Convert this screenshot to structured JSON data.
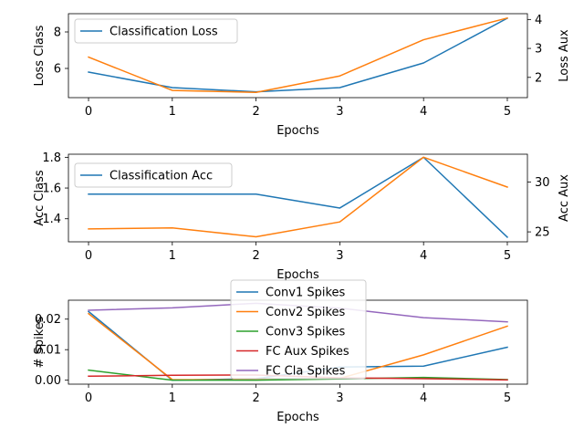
{
  "chart_data": [
    {
      "type": "line",
      "xlabel": "Epochs",
      "ylabel_left": "Loss Class",
      "ylabel_right": "Loss Aux",
      "x": [
        0,
        1,
        2,
        3,
        4,
        5
      ],
      "xticks": [
        "0",
        "1",
        "2",
        "3",
        "4",
        "5"
      ],
      "left_ylim": [
        4.4,
        9.0
      ],
      "left_yticks": [
        "6",
        "8"
      ],
      "right_ylim": [
        1.3,
        4.2
      ],
      "right_yticks": [
        "2",
        "3",
        "4"
      ],
      "legend": {
        "position": "top-left",
        "entries": [
          "Classification Loss"
        ]
      },
      "series": [
        {
          "name": "Classification Loss",
          "axis": "left",
          "color": "#1f77b4",
          "values": [
            5.8,
            4.95,
            4.72,
            4.95,
            6.3,
            8.75
          ]
        },
        {
          "axis": "right",
          "color": "#ff7f0e",
          "values": [
            2.7,
            1.55,
            1.48,
            2.05,
            3.3,
            4.05
          ]
        }
      ]
    },
    {
      "type": "line",
      "xlabel": "Epochs",
      "ylabel_left": "Acc Class",
      "ylabel_right": "Acc Aux",
      "x": [
        0,
        1,
        2,
        3,
        4,
        5
      ],
      "xticks": [
        "0",
        "1",
        "2",
        "3",
        "4",
        "5"
      ],
      "left_ylim": [
        1.25,
        1.82
      ],
      "left_yticks": [
        "1.4",
        "1.6",
        "1.8"
      ],
      "right_ylim": [
        24.0,
        32.8
      ],
      "right_yticks": [
        "25",
        "30"
      ],
      "legend": {
        "position": "top-left",
        "entries": [
          "Classification Acc"
        ]
      },
      "series": [
        {
          "name": "Classification Acc",
          "axis": "left",
          "color": "#1f77b4",
          "values": [
            1.56,
            1.56,
            1.56,
            1.47,
            1.8,
            1.28
          ]
        },
        {
          "axis": "right",
          "color": "#ff7f0e",
          "values": [
            25.3,
            25.4,
            24.5,
            26.0,
            32.5,
            29.5
          ]
        }
      ]
    },
    {
      "type": "line",
      "xlabel": "Epochs",
      "ylabel": "# Spikes",
      "x": [
        0,
        1,
        2,
        3,
        4,
        5
      ],
      "xticks": [
        "0",
        "1",
        "2",
        "3",
        "4",
        "5"
      ],
      "ylim": [
        -0.0013,
        0.0262
      ],
      "yticks": [
        "0.00",
        "0.01",
        "0.02"
      ],
      "legend": {
        "position": "top-center",
        "entries": [
          "Conv1 Spikes",
          "Conv2 Spikes",
          "Conv3 Spikes",
          "FC Aux Spikes",
          "FC Cla Spikes"
        ]
      },
      "series": [
        {
          "name": "Conv1 Spikes",
          "color": "#1f77b4",
          "values": [
            0.0225,
            0.0,
            0.0005,
            0.0043,
            0.0046,
            0.0108
          ]
        },
        {
          "name": "Conv2 Spikes",
          "color": "#ff7f0e",
          "values": [
            0.0218,
            0.0002,
            0.0001,
            0.0006,
            0.0083,
            0.0177
          ]
        },
        {
          "name": "Conv3 Spikes",
          "color": "#2ca02c",
          "values": [
            0.0033,
            0.0,
            0.0,
            0.0004,
            0.0009,
            0.0002
          ]
        },
        {
          "name": "FC Aux Spikes",
          "color": "#d62728",
          "values": [
            0.0013,
            0.0016,
            0.0017,
            0.0008,
            0.0005,
            0.0001
          ]
        },
        {
          "name": "FC Cla Spikes",
          "color": "#9467bd",
          "values": [
            0.0229,
            0.0237,
            0.0252,
            0.0236,
            0.0205,
            0.0191
          ]
        }
      ]
    }
  ]
}
